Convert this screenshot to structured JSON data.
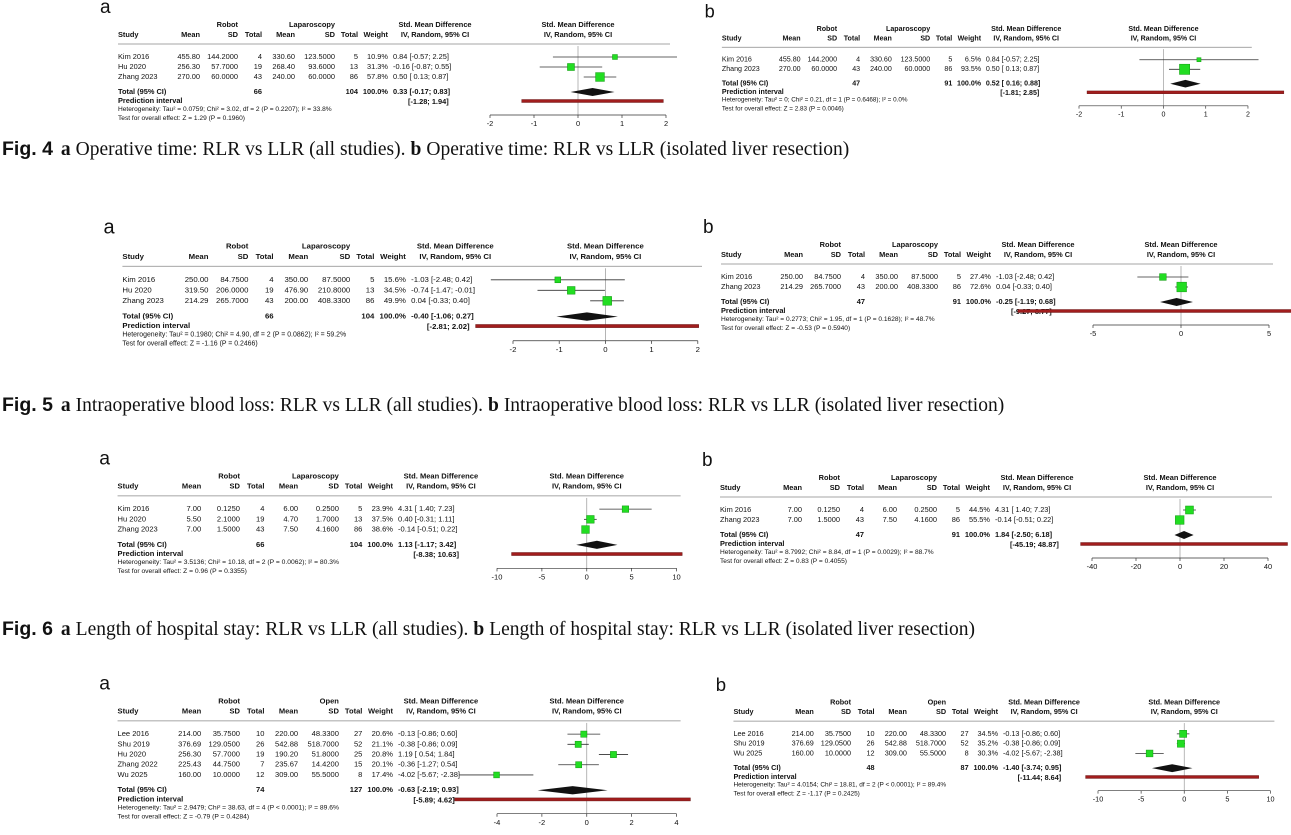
{
  "panels": [
    {
      "letter": "a",
      "group1": "Robot",
      "group2": "Laparoscopy",
      "columns": [
        "Study",
        "Mean",
        "SD",
        "Total",
        "Mean",
        "SD",
        "Total",
        "Weight",
        "IV, Random, 95% CI"
      ],
      "effect_title": "Std. Mean Difference",
      "plot_title": [
        "Std. Mean Difference",
        "IV, Random, 95% CI"
      ],
      "studies": [
        {
          "cells": [
            "Kim 2016",
            "455.80",
            "144.2000",
            "4",
            "330.60",
            "123.5000",
            "5",
            "10.9%",
            "0.84 [-0.57; 2.25]"
          ],
          "est": 0.84,
          "lo": -0.57,
          "hi": 2.25,
          "w": 10.9
        },
        {
          "cells": [
            "Hu 2020",
            "256.30",
            "57.7000",
            "19",
            "268.40",
            "93.6000",
            "13",
            "31.3%",
            "-0.16 [-0.87; 0.55]"
          ],
          "est": -0.16,
          "lo": -0.87,
          "hi": 0.55,
          "w": 31.3
        },
        {
          "cells": [
            "Zhang 2023",
            "270.00",
            "60.0000",
            "43",
            "240.00",
            "60.0000",
            "86",
            "57.8%",
            "0.50 [ 0.13; 0.87]"
          ],
          "est": 0.5,
          "lo": 0.13,
          "hi": 0.87,
          "w": 57.8
        }
      ],
      "total": {
        "cells": [
          "Total (95% CI)",
          "66",
          "104",
          "100.0%",
          "0.33 [-0.17; 0.83]"
        ],
        "est": 0.33,
        "lo": -0.17,
        "hi": 0.83
      },
      "prediction": {
        "label": "Prediction interval",
        "ci": "[-1.28; 1.94]",
        "lo": -1.28,
        "hi": 1.94
      },
      "heterogeneity": "Heterogeneity: Tau² = 0.0759; Chi² = 3.02, df = 2 (P = 0.2207); I² = 33.8%",
      "test": "Test for overall effect: Z = 1.29 (P = 0.1960)",
      "xlim": [
        -2,
        2
      ],
      "xticks": [
        -2,
        -1,
        0,
        1,
        2
      ]
    },
    {
      "letter": "b",
      "group1": "Robot",
      "group2": "Laparoscopy",
      "columns": [
        "Study",
        "Mean",
        "SD",
        "Total",
        "Mean",
        "SD",
        "Total",
        "Weight",
        "IV, Random, 95% CI"
      ],
      "effect_title": "Std. Mean Difference",
      "plot_title": [
        "Std. Mean Difference",
        "IV, Random, 95% CI"
      ],
      "studies": [
        {
          "cells": [
            "Kim 2016",
            "455.80",
            "144.2000",
            "4",
            "330.60",
            "123.5000",
            "5",
            "6.5%",
            "0.84 [-0.57; 2.25]"
          ],
          "est": 0.84,
          "lo": -0.57,
          "hi": 2.25,
          "w": 6.5
        },
        {
          "cells": [
            "Zhang 2023",
            "270.00",
            "60.0000",
            "43",
            "240.00",
            "60.0000",
            "86",
            "93.5%",
            "0.50 [ 0.13; 0.87]"
          ],
          "est": 0.5,
          "lo": 0.13,
          "hi": 0.87,
          "w": 93.5
        }
      ],
      "total": {
        "cells": [
          "Total (95% CI)",
          "47",
          "91",
          "100.0%",
          "0.52 [ 0.16; 0.88]"
        ],
        "est": 0.52,
        "lo": 0.16,
        "hi": 0.88
      },
      "prediction": {
        "label": "Prediction interval",
        "ci": "[-1.81; 2.85]",
        "lo": -1.81,
        "hi": 2.85
      },
      "heterogeneity": "Heterogeneity: Tau² = 0; Chi² = 0.21, df = 1 (P = 0.6468); I² = 0.0%",
      "test": "Test for overall effect: Z = 2.83 (P = 0.0046)",
      "xlim": [
        -2,
        2
      ],
      "xticks": [
        -2,
        -1,
        0,
        1,
        2
      ]
    },
    {
      "letter": "a",
      "group1": "Robot",
      "group2": "Laparoscopy",
      "columns": [
        "Study",
        "Mean",
        "SD",
        "Total",
        "Mean",
        "SD",
        "Total",
        "Weight",
        "IV, Random, 95% CI"
      ],
      "effect_title": "Std. Mean Difference",
      "plot_title": [
        "Std. Mean Difference",
        "IV, Random, 95% CI"
      ],
      "studies": [
        {
          "cells": [
            "Kim 2016",
            "250.00",
            "84.7500",
            "4",
            "350.00",
            "87.5000",
            "5",
            "15.6%",
            "-1.03 [-2.48; 0.42]"
          ],
          "est": -1.03,
          "lo": -2.48,
          "hi": 0.42,
          "w": 15.6
        },
        {
          "cells": [
            "Hu 2020",
            "319.50",
            "206.0000",
            "19",
            "476.90",
            "210.8000",
            "13",
            "34.5%",
            "-0.74 [-1.47; -0.01]"
          ],
          "est": -0.74,
          "lo": -1.47,
          "hi": -0.01,
          "w": 34.5
        },
        {
          "cells": [
            "Zhang 2023",
            "214.29",
            "265.7000",
            "43",
            "200.00",
            "408.3300",
            "86",
            "49.9%",
            "0.04 [-0.33; 0.40]"
          ],
          "est": 0.04,
          "lo": -0.33,
          "hi": 0.4,
          "w": 49.9
        }
      ],
      "total": {
        "cells": [
          "Total (95% CI)",
          "66",
          "104",
          "100.0%",
          "-0.40 [-1.06; 0.27]"
        ],
        "est": -0.4,
        "lo": -1.06,
        "hi": 0.27
      },
      "prediction": {
        "label": "Prediction interval",
        "ci": "[-2.81; 2.02]",
        "lo": -2.81,
        "hi": 2.02
      },
      "heterogeneity": "Heterogeneity: Tau² = 0.1980; Chi² = 4.90, df = 2 (P = 0.0862); I² = 59.2%",
      "test": "Test for overall effect: Z = -1.16 (P = 0.2466)",
      "xlim": [
        -2,
        2
      ],
      "xticks": [
        -2,
        -1,
        0,
        1,
        2
      ]
    },
    {
      "letter": "b",
      "group1": "Robot",
      "group2": "Laparoscopy",
      "columns": [
        "Study",
        "Mean",
        "SD",
        "Total",
        "Mean",
        "SD",
        "Total",
        "Weight",
        "IV, Random, 95% CI"
      ],
      "effect_title": "Std. Mean Difference",
      "plot_title": [
        "Std. Mean Difference",
        "IV, Random, 95% CI"
      ],
      "studies": [
        {
          "cells": [
            "Kim 2016",
            "250.00",
            "84.7500",
            "4",
            "350.00",
            "87.5000",
            "5",
            "27.4%",
            "-1.03 [-2.48; 0.42]"
          ],
          "est": -1.03,
          "lo": -2.48,
          "hi": 0.42,
          "w": 27.4
        },
        {
          "cells": [
            "Zhang 2023",
            "214.29",
            "265.7000",
            "43",
            "200.00",
            "408.3300",
            "86",
            "72.6%",
            "0.04 [-0.33; 0.40]"
          ],
          "est": 0.04,
          "lo": -0.33,
          "hi": 0.4,
          "w": 72.6
        }
      ],
      "total": {
        "cells": [
          "Total (95% CI)",
          "47",
          "91",
          "100.0%",
          "-0.25 [-1.19; 0.68]"
        ],
        "est": -0.25,
        "lo": -1.19,
        "hi": 0.68
      },
      "prediction": {
        "label": "Prediction interval",
        "ci": "[-9.27; 8.77]",
        "lo": -9.27,
        "hi": 8.77
      },
      "heterogeneity": "Heterogeneity: Tau² = 0.2773; Chi² = 1.95, df = 1 (P = 0.1628); I² = 48.7%",
      "test": "Test for overall effect: Z = -0.53 (P = 0.5940)",
      "xlim": [
        -5,
        5
      ],
      "xticks": [
        -5,
        0,
        5
      ]
    },
    {
      "letter": "a",
      "group1": "Robot",
      "group2": "Laparoscopy",
      "columns": [
        "Study",
        "Mean",
        "SD",
        "Total",
        "Mean",
        "SD",
        "Total",
        "Weight",
        "IV, Random, 95% CI"
      ],
      "effect_title": "Std. Mean Difference",
      "plot_title": [
        "Std. Mean Difference",
        "IV, Random, 95% CI"
      ],
      "studies": [
        {
          "cells": [
            "Kim 2016",
            "7.00",
            "0.1250",
            "4",
            "6.00",
            "0.2500",
            "5",
            "23.9%",
            "4.31 [ 1.40; 7.23]"
          ],
          "est": 4.31,
          "lo": 1.4,
          "hi": 7.23,
          "w": 23.9
        },
        {
          "cells": [
            "Hu 2020",
            "5.50",
            "2.1000",
            "19",
            "4.70",
            "1.7000",
            "13",
            "37.5%",
            "0.40 [-0.31; 1.11]"
          ],
          "est": 0.4,
          "lo": -0.31,
          "hi": 1.11,
          "w": 37.5
        },
        {
          "cells": [
            "Zhang 2023",
            "7.00",
            "1.5000",
            "43",
            "7.50",
            "4.1600",
            "86",
            "38.6%",
            "-0.14 [-0.51; 0.22]"
          ],
          "est": -0.14,
          "lo": -0.51,
          "hi": 0.22,
          "w": 38.6
        }
      ],
      "total": {
        "cells": [
          "Total (95% CI)",
          "66",
          "104",
          "100.0%",
          "1.13 [-1.17; 3.42]"
        ],
        "est": 1.13,
        "lo": -1.17,
        "hi": 3.42
      },
      "prediction": {
        "label": "Prediction interval",
        "ci": "[-8.38; 10.63]",
        "lo": -8.38,
        "hi": 10.63
      },
      "heterogeneity": "Heterogeneity: Tau² = 3.5136; Chi² = 10.18, df = 2 (P = 0.0062); I² = 80.3%",
      "test": "Test for overall effect: Z = 0.96 (P = 0.3355)",
      "xlim": [
        -10,
        10
      ],
      "xticks": [
        -10,
        -5,
        0,
        5,
        10
      ]
    },
    {
      "letter": "b",
      "group1": "Robot",
      "group2": "Laparoscopy",
      "columns": [
        "Study",
        "Mean",
        "SD",
        "Total",
        "Mean",
        "SD",
        "Total",
        "Weight",
        "IV, Random, 95% CI"
      ],
      "effect_title": "Std. Mean Difference",
      "plot_title": [
        "Std. Mean Difference",
        "IV, Random, 95% CI"
      ],
      "studies": [
        {
          "cells": [
            "Kim 2016",
            "7.00",
            "0.1250",
            "4",
            "6.00",
            "0.2500",
            "5",
            "44.5%",
            "4.31 [ 1.40; 7.23]"
          ],
          "est": 4.31,
          "lo": 1.4,
          "hi": 7.23,
          "w": 44.5
        },
        {
          "cells": [
            "Zhang 2023",
            "7.00",
            "1.5000",
            "43",
            "7.50",
            "4.1600",
            "86",
            "55.5%",
            "-0.14 [-0.51; 0.22]"
          ],
          "est": -0.14,
          "lo": -0.51,
          "hi": 0.22,
          "w": 55.5
        }
      ],
      "total": {
        "cells": [
          "Total (95% CI)",
          "47",
          "91",
          "100.0%",
          "1.84 [-2.50; 6.18]"
        ],
        "est": 1.84,
        "lo": -2.5,
        "hi": 6.18
      },
      "prediction": {
        "label": "Prediction interval",
        "ci": "[-45.19; 48.87]",
        "lo": -45.19,
        "hi": 48.87
      },
      "heterogeneity": "Heterogeneity: Tau² = 8.7992; Chi² = 8.84, df = 1 (P = 0.0029); I² = 88.7%",
      "test": "Test for overall effect: Z = 0.83 (P = 0.4055)",
      "xlim": [
        -40,
        40
      ],
      "xticks": [
        -40,
        -20,
        0,
        20,
        40
      ]
    },
    {
      "letter": "a",
      "group1": "Robot",
      "group2": "Open",
      "columns": [
        "Study",
        "Mean",
        "SD",
        "Total",
        "Mean",
        "SD",
        "Total",
        "Weight",
        "IV, Random, 95% CI"
      ],
      "effect_title": "Std. Mean Difference",
      "plot_title": [
        "Std. Mean Difference",
        "IV, Random, 95% CI"
      ],
      "studies": [
        {
          "cells": [
            "Lee 2016",
            "214.00",
            "35.7500",
            "10",
            "220.00",
            "48.3300",
            "27",
            "20.6%",
            "-0.13 [-0.86; 0.60]"
          ],
          "est": -0.13,
          "lo": -0.86,
          "hi": 0.6,
          "w": 20.6
        },
        {
          "cells": [
            "Shu 2019",
            "376.69",
            "129.0500",
            "26",
            "542.88",
            "518.7000",
            "52",
            "21.1%",
            "-0.38 [-0.86; 0.09]"
          ],
          "est": -0.38,
          "lo": -0.86,
          "hi": 0.09,
          "w": 21.1
        },
        {
          "cells": [
            "Hu 2020",
            "256.30",
            "57.7000",
            "19",
            "190.20",
            "51.8000",
            "25",
            "20.8%",
            "1.19 [ 0.54; 1.84]"
          ],
          "est": 1.19,
          "lo": 0.54,
          "hi": 1.84,
          "w": 20.8
        },
        {
          "cells": [
            "Zhang 2022",
            "225.43",
            "44.7500",
            "7",
            "235.67",
            "14.4200",
            "15",
            "20.1%",
            "-0.36 [-1.27; 0.54]"
          ],
          "est": -0.36,
          "lo": -1.27,
          "hi": 0.54,
          "w": 20.1
        },
        {
          "cells": [
            "Wu 2025",
            "160.00",
            "10.0000",
            "12",
            "309.00",
            "55.5000",
            "8",
            "17.4%",
            "-4.02 [-5.67; -2.38]"
          ],
          "est": -4.02,
          "lo": -5.67,
          "hi": -2.38,
          "w": 17.4
        }
      ],
      "total": {
        "cells": [
          "Total (95% CI)",
          "74",
          "127",
          "100.0%",
          "-0.63 [-2.19; 0.93]"
        ],
        "est": -0.63,
        "lo": -2.19,
        "hi": 0.93
      },
      "prediction": {
        "label": "Prediction interval",
        "ci": "[-5.89; 4.62]",
        "lo": -5.89,
        "hi": 4.62
      },
      "heterogeneity": "Heterogeneity: Tau² = 2.9479; Chi² = 38.63, df = 4 (P < 0.0001); I² = 89.6%",
      "test": "Test for overall effect: Z = -0.79 (P = 0.4284)",
      "xlim": [
        -4,
        4
      ],
      "xticks": [
        -4,
        -2,
        0,
        2,
        4
      ]
    },
    {
      "letter": "b",
      "group1": "Robot",
      "group2": "Open",
      "columns": [
        "Study",
        "Mean",
        "SD",
        "Total",
        "Mean",
        "SD",
        "Total",
        "Weight",
        "IV, Random, 95% CI"
      ],
      "effect_title": "Std. Mean Difference",
      "plot_title": [
        "Std. Mean Difference",
        "IV, Random, 95% CI"
      ],
      "studies": [
        {
          "cells": [
            "Lee 2016",
            "214.00",
            "35.7500",
            "10",
            "220.00",
            "48.3300",
            "27",
            "34.5%",
            "-0.13 [-0.86; 0.60]"
          ],
          "est": -0.13,
          "lo": -0.86,
          "hi": 0.6,
          "w": 34.5
        },
        {
          "cells": [
            "Shu 2019",
            "376.69",
            "129.0500",
            "26",
            "542.88",
            "518.7000",
            "52",
            "35.2%",
            "-0.38 [-0.86; 0.09]"
          ],
          "est": -0.38,
          "lo": -0.86,
          "hi": 0.09,
          "w": 35.2
        },
        {
          "cells": [
            "Wu 2025",
            "160.00",
            "10.0000",
            "12",
            "309.00",
            "55.5000",
            "8",
            "30.3%",
            "-4.02 [-5.67; -2.38]"
          ],
          "est": -4.02,
          "lo": -5.67,
          "hi": -2.38,
          "w": 30.3
        }
      ],
      "total": {
        "cells": [
          "Total (95% CI)",
          "48",
          "87",
          "100.0%",
          "-1.40 [-3.74; 0.95]"
        ],
        "est": -1.4,
        "lo": -3.74,
        "hi": 0.95
      },
      "prediction": {
        "label": "Prediction interval",
        "ci": "[-11.44; 8.64]",
        "lo": -11.44,
        "hi": 8.64
      },
      "heterogeneity": "Heterogeneity: Tau² = 4.0154; Chi² = 18.81, df = 2 (P < 0.0001); I² = 89.4%",
      "test": "Test for overall effect: Z = -1.17 (P = 0.2425)",
      "xlim": [
        -10,
        10
      ],
      "xticks": [
        -10,
        -5,
        0,
        5,
        10
      ]
    }
  ],
  "captions": [
    {
      "fig": "Fig. 4",
      "a": "a",
      "a_text": "Operative time: RLR vs LLR (all studies).",
      "b": "b",
      "b_text": "Operative time: RLR vs LLR (isolated liver resection)"
    },
    {
      "fig": "Fig. 5",
      "a": "a",
      "a_text": "Intraoperative blood loss: RLR vs LLR (all studies).",
      "b": "b",
      "b_text": "Intraoperative blood loss: RLR vs LLR (isolated liver resection)"
    },
    {
      "fig": "Fig. 6",
      "a": "a",
      "a_text": "Length of hospital stay: RLR vs LLR (all studies).",
      "b": "b",
      "b_text": "Length of hospital stay: RLR vs LLR (isolated liver resection)"
    }
  ]
}
